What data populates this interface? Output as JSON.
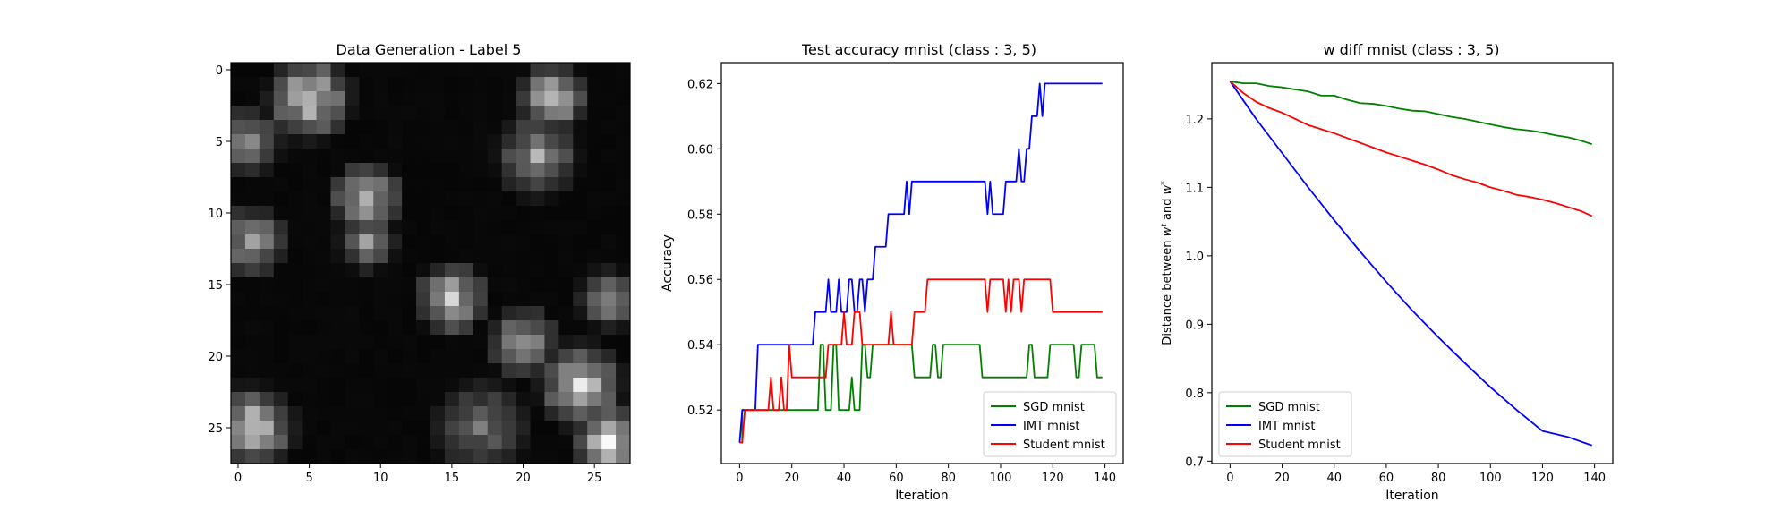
{
  "chart_data": [
    {
      "type": "heatmap",
      "title": "Data Generation - Label 5",
      "colormap": "gray",
      "x_ticks": [
        "0",
        "5",
        "10",
        "15",
        "20",
        "25"
      ],
      "y_ticks": [
        "0",
        "5",
        "10",
        "15",
        "20",
        "25"
      ],
      "xlim": [
        -0.5,
        27.5
      ],
      "ylim": [
        27.5,
        -0.5
      ],
      "grid_size": [
        28,
        28
      ],
      "approx_bright_regions": [
        {
          "cx": 5,
          "cy": 2,
          "r": 3.5,
          "level": 0.85
        },
        {
          "cx": 22,
          "cy": 2,
          "r": 3,
          "level": 0.75
        },
        {
          "cx": 0.5,
          "cy": 5,
          "r": 3,
          "level": 0.55
        },
        {
          "cx": 21,
          "cy": 6,
          "r": 3.5,
          "level": 0.6
        },
        {
          "cx": 9,
          "cy": 9,
          "r": 3,
          "level": 0.75
        },
        {
          "cx": 1,
          "cy": 12,
          "r": 3,
          "level": 0.6
        },
        {
          "cx": 9,
          "cy": 12,
          "r": 2.5,
          "level": 0.55
        },
        {
          "cx": 15,
          "cy": 16,
          "r": 3,
          "level": 0.75
        },
        {
          "cx": 26,
          "cy": 16,
          "r": 2.5,
          "level": 0.6
        },
        {
          "cx": 20,
          "cy": 19,
          "r": 3,
          "level": 0.65
        },
        {
          "cx": 24,
          "cy": 22,
          "r": 3.5,
          "level": 0.8
        },
        {
          "cx": 1,
          "cy": 25,
          "r": 3.5,
          "level": 0.8
        },
        {
          "cx": 26,
          "cy": 26,
          "r": 3,
          "level": 0.9
        },
        {
          "cx": 17,
          "cy": 25,
          "r": 4,
          "level": 0.45
        }
      ]
    },
    {
      "type": "line",
      "title": "Test accuracy mnist (class : 3, 5)",
      "xlabel": "Iteration",
      "ylabel": "Accuracy",
      "xlim": [
        -7,
        147
      ],
      "ylim": [
        0.5036,
        0.6264
      ],
      "x_ticks": [
        0,
        20,
        40,
        60,
        80,
        100,
        120,
        140
      ],
      "y_ticks": [
        0.52,
        0.54,
        0.56,
        0.58,
        0.6,
        0.62
      ],
      "y_tick_labels": [
        "0.52",
        "0.54",
        "0.56",
        "0.58",
        "0.60",
        "0.62"
      ],
      "legend_position": "lower-right",
      "series": [
        {
          "name": "SGD mnist",
          "color": "#008000",
          "points": [
            [
              0,
              0.51
            ],
            [
              1,
              0.51
            ],
            [
              1,
              0.52
            ],
            [
              30,
              0.52
            ],
            [
              31,
              0.54
            ],
            [
              32,
              0.54
            ],
            [
              33,
              0.52
            ],
            [
              35,
              0.52
            ],
            [
              36,
              0.54
            ],
            [
              37,
              0.54
            ],
            [
              38,
              0.52
            ],
            [
              42,
              0.52
            ],
            [
              43,
              0.53
            ],
            [
              44,
              0.52
            ],
            [
              46,
              0.52
            ],
            [
              47,
              0.54
            ],
            [
              48,
              0.54
            ],
            [
              49,
              0.53
            ],
            [
              50,
              0.53
            ],
            [
              51,
              0.54
            ],
            [
              66,
              0.54
            ],
            [
              67,
              0.53
            ],
            [
              73,
              0.53
            ],
            [
              74,
              0.54
            ],
            [
              75,
              0.54
            ],
            [
              76,
              0.53
            ],
            [
              77,
              0.53
            ],
            [
              78,
              0.54
            ],
            [
              92,
              0.54
            ],
            [
              93,
              0.53
            ],
            [
              110,
              0.53
            ],
            [
              111,
              0.54
            ],
            [
              112,
              0.54
            ],
            [
              113,
              0.53
            ],
            [
              118,
              0.53
            ],
            [
              119,
              0.54
            ],
            [
              128,
              0.54
            ],
            [
              129,
              0.53
            ],
            [
              130,
              0.53
            ],
            [
              131,
              0.54
            ],
            [
              136,
              0.54
            ],
            [
              137,
              0.53
            ],
            [
              139,
              0.53
            ]
          ]
        },
        {
          "name": "IMT mnist",
          "color": "#0000ff",
          "points": [
            [
              0,
              0.51
            ],
            [
              1,
              0.52
            ],
            [
              6,
              0.52
            ],
            [
              7,
              0.54
            ],
            [
              28,
              0.54
            ],
            [
              29,
              0.55
            ],
            [
              33,
              0.55
            ],
            [
              34,
              0.56
            ],
            [
              35,
              0.55
            ],
            [
              37,
              0.55
            ],
            [
              38,
              0.56
            ],
            [
              39,
              0.55
            ],
            [
              41,
              0.55
            ],
            [
              42,
              0.56
            ],
            [
              43,
              0.56
            ],
            [
              44,
              0.55
            ],
            [
              45,
              0.55
            ],
            [
              46,
              0.56
            ],
            [
              47,
              0.56
            ],
            [
              48,
              0.55
            ],
            [
              49,
              0.56
            ],
            [
              51,
              0.56
            ],
            [
              52,
              0.57
            ],
            [
              56,
              0.57
            ],
            [
              57,
              0.58
            ],
            [
              63,
              0.58
            ],
            [
              64,
              0.59
            ],
            [
              65,
              0.58
            ],
            [
              66,
              0.59
            ],
            [
              94,
              0.59
            ],
            [
              95,
              0.58
            ],
            [
              96,
              0.59
            ],
            [
              97,
              0.58
            ],
            [
              101,
              0.58
            ],
            [
              102,
              0.59
            ],
            [
              106,
              0.59
            ],
            [
              107,
              0.6
            ],
            [
              108,
              0.59
            ],
            [
              109,
              0.59
            ],
            [
              110,
              0.6
            ],
            [
              111,
              0.6
            ],
            [
              112,
              0.61
            ],
            [
              113,
              0.61
            ],
            [
              114,
              0.61
            ],
            [
              115,
              0.62
            ],
            [
              116,
              0.61
            ],
            [
              117,
              0.62
            ],
            [
              139,
              0.62
            ]
          ]
        },
        {
          "name": "Student mnist",
          "color": "#ff0000",
          "points": [
            [
              0,
              0.51
            ],
            [
              1,
              0.51
            ],
            [
              2,
              0.52
            ],
            [
              11,
              0.52
            ],
            [
              12,
              0.53
            ],
            [
              13,
              0.52
            ],
            [
              15,
              0.52
            ],
            [
              16,
              0.53
            ],
            [
              17,
              0.52
            ],
            [
              18,
              0.52
            ],
            [
              19,
              0.54
            ],
            [
              20,
              0.53
            ],
            [
              33,
              0.53
            ],
            [
              34,
              0.54
            ],
            [
              39,
              0.54
            ],
            [
              40,
              0.55
            ],
            [
              41,
              0.54
            ],
            [
              43,
              0.54
            ],
            [
              44,
              0.55
            ],
            [
              46,
              0.55
            ],
            [
              47,
              0.54
            ],
            [
              57,
              0.54
            ],
            [
              58,
              0.55
            ],
            [
              59,
              0.54
            ],
            [
              66,
              0.54
            ],
            [
              67,
              0.55
            ],
            [
              71,
              0.55
            ],
            [
              72,
              0.56
            ],
            [
              94,
              0.56
            ],
            [
              95,
              0.55
            ],
            [
              96,
              0.56
            ],
            [
              101,
              0.56
            ],
            [
              102,
              0.55
            ],
            [
              103,
              0.56
            ],
            [
              104,
              0.55
            ],
            [
              105,
              0.56
            ],
            [
              107,
              0.56
            ],
            [
              108,
              0.55
            ],
            [
              109,
              0.56
            ],
            [
              119,
              0.56
            ],
            [
              120,
              0.55
            ],
            [
              139,
              0.55
            ]
          ]
        }
      ]
    },
    {
      "type": "line",
      "title": "w diff mnist (class : 3, 5)",
      "xlabel": "Iteration",
      "ylabel": "Distance between w^t and w^*",
      "xlim": [
        -7,
        147
      ],
      "ylim": [
        0.6965,
        1.2822
      ],
      "x_ticks": [
        0,
        20,
        40,
        60,
        80,
        100,
        120,
        140
      ],
      "y_ticks": [
        0.7,
        0.8,
        0.9,
        1.0,
        1.1,
        1.2
      ],
      "y_tick_labels": [
        "0.7",
        "0.8",
        "0.9",
        "1.0",
        "1.1",
        "1.2"
      ],
      "legend_position": "lower-left",
      "series": [
        {
          "name": "SGD mnist",
          "color": "#008000",
          "points": [
            [
              0,
              1.255
            ],
            [
              5,
              1.252
            ],
            [
              10,
              1.252
            ],
            [
              15,
              1.248
            ],
            [
              20,
              1.246
            ],
            [
              25,
              1.243
            ],
            [
              30,
              1.24
            ],
            [
              35,
              1.234
            ],
            [
              40,
              1.234
            ],
            [
              45,
              1.228
            ],
            [
              50,
              1.223
            ],
            [
              55,
              1.222
            ],
            [
              60,
              1.219
            ],
            [
              65,
              1.215
            ],
            [
              70,
              1.212
            ],
            [
              75,
              1.211
            ],
            [
              80,
              1.207
            ],
            [
              85,
              1.203
            ],
            [
              90,
              1.2
            ],
            [
              95,
              1.196
            ],
            [
              100,
              1.192
            ],
            [
              105,
              1.188
            ],
            [
              110,
              1.185
            ],
            [
              115,
              1.183
            ],
            [
              120,
              1.18
            ],
            [
              125,
              1.176
            ],
            [
              130,
              1.173
            ],
            [
              135,
              1.168
            ],
            [
              139,
              1.163
            ]
          ]
        },
        {
          "name": "IMT mnist",
          "color": "#0000ff",
          "points": [
            [
              0,
              1.255
            ],
            [
              10,
              1.2
            ],
            [
              20,
              1.15
            ],
            [
              30,
              1.1
            ],
            [
              40,
              1.052
            ],
            [
              50,
              1.006
            ],
            [
              60,
              0.962
            ],
            [
              70,
              0.92
            ],
            [
              80,
              0.881
            ],
            [
              90,
              0.844
            ],
            [
              100,
              0.808
            ],
            [
              110,
              0.775
            ],
            [
              120,
              0.744
            ],
            [
              130,
              0.735
            ],
            [
              139,
              0.723
            ]
          ]
        },
        {
          "name": "Student mnist",
          "color": "#ff0000",
          "points": [
            [
              0,
              1.255
            ],
            [
              5,
              1.238
            ],
            [
              10,
              1.225
            ],
            [
              15,
              1.216
            ],
            [
              20,
              1.209
            ],
            [
              25,
              1.2
            ],
            [
              30,
              1.191
            ],
            [
              35,
              1.185
            ],
            [
              40,
              1.179
            ],
            [
              45,
              1.172
            ],
            [
              50,
              1.165
            ],
            [
              55,
              1.158
            ],
            [
              60,
              1.151
            ],
            [
              65,
              1.145
            ],
            [
              70,
              1.139
            ],
            [
              75,
              1.133
            ],
            [
              80,
              1.126
            ],
            [
              85,
              1.118
            ],
            [
              90,
              1.112
            ],
            [
              95,
              1.107
            ],
            [
              100,
              1.1
            ],
            [
              105,
              1.095
            ],
            [
              110,
              1.089
            ],
            [
              115,
              1.086
            ],
            [
              120,
              1.082
            ],
            [
              125,
              1.077
            ],
            [
              130,
              1.071
            ],
            [
              135,
              1.065
            ],
            [
              139,
              1.058
            ]
          ]
        }
      ]
    }
  ]
}
